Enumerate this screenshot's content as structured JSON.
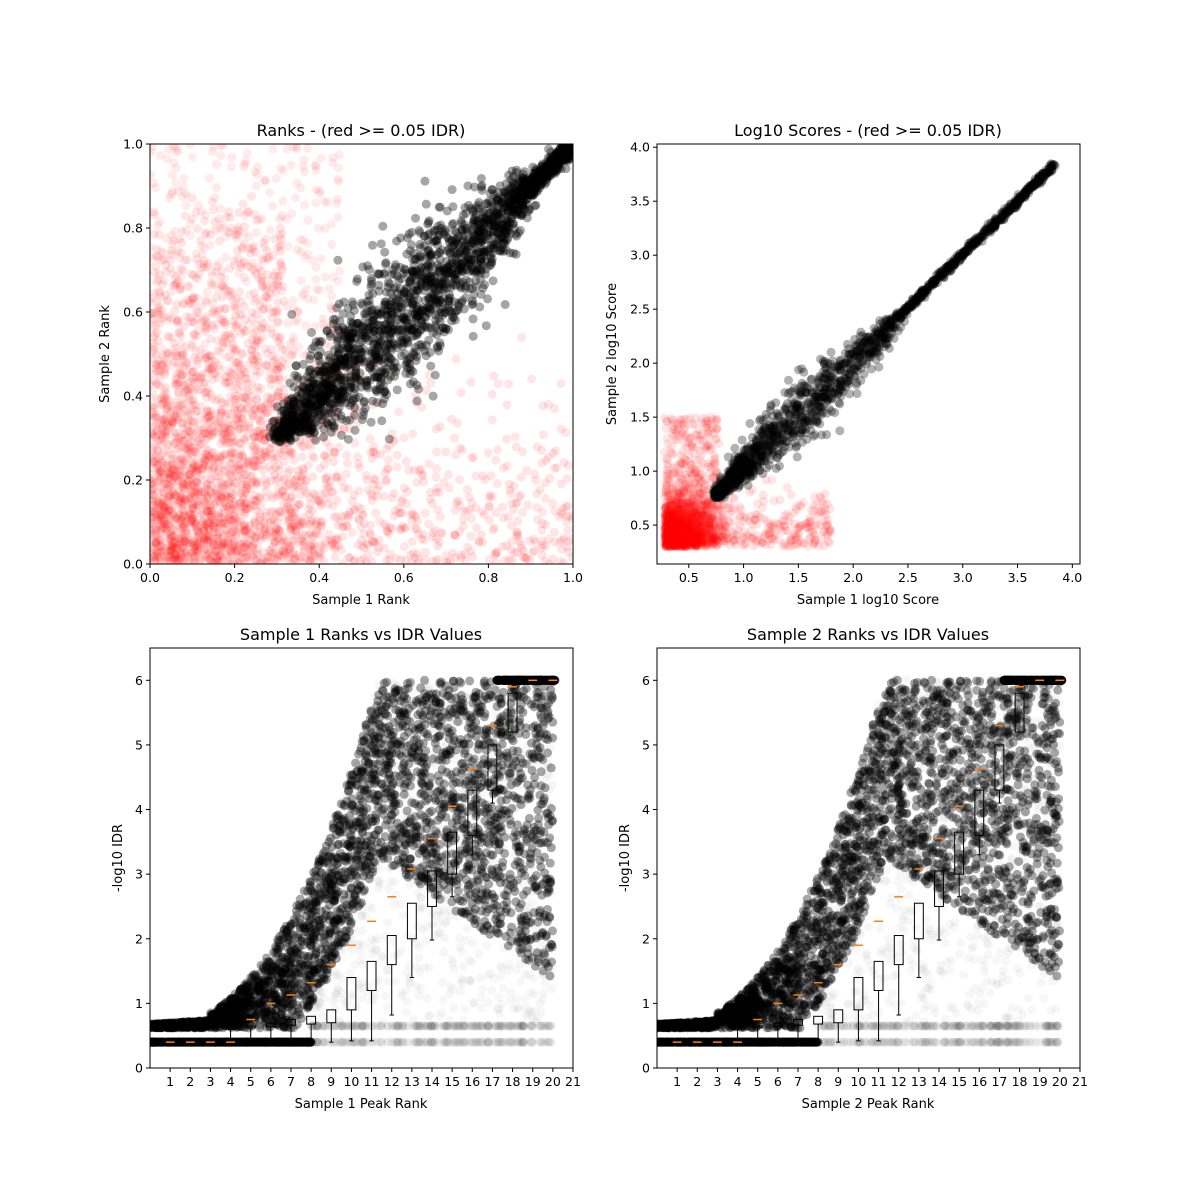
{
  "chart_data": [
    {
      "type": "scatter",
      "title": "Ranks - (red >= 0.05 IDR)",
      "xlabel": "Sample 1 Rank",
      "ylabel": "Sample 2 Rank",
      "xlim": [
        0.0,
        1.0
      ],
      "ylim": [
        0.0,
        1.0
      ],
      "xticks": [
        "0.0",
        "0.2",
        "0.4",
        "0.6",
        "0.8",
        "1.0"
      ],
      "yticks": [
        "0.0",
        "0.2",
        "0.4",
        "0.6",
        "0.8",
        "1.0"
      ],
      "grid": false,
      "series": [
        {
          "color": "#ff0000",
          "marker_alpha": 0.1,
          "x": [
            0.05,
            0.1,
            0.15,
            0.2,
            0.25,
            0.3,
            0.35,
            0.4,
            0.45,
            0.5,
            0.55,
            0.6,
            0.65,
            0.7,
            0.75,
            0.8,
            0.85,
            0.9,
            0.95,
            0.02,
            0.08,
            0.12,
            0.18,
            0.22,
            0.05,
            0.1,
            0.15,
            0.2,
            0.25,
            0.05,
            0.1,
            0.15,
            0.2,
            0.25,
            0.3,
            0.05,
            0.1,
            0.15,
            0.2,
            0.05,
            0.1,
            0.15,
            0.2,
            0.25
          ],
          "y": [
            0.1,
            0.2,
            0.15,
            0.25,
            0.1,
            0.2,
            0.1,
            0.15,
            0.2,
            0.1,
            0.12,
            0.08,
            0.1,
            0.15,
            0.05,
            0.1,
            0.2,
            0.05,
            0.1,
            0.95,
            0.9,
            0.85,
            0.8,
            0.75,
            0.7,
            0.65,
            0.6,
            0.55,
            0.45,
            0.4,
            0.35,
            0.3,
            0.25,
            0.3,
            0.25,
            0.5,
            0.45,
            0.4,
            0.35,
            0.05,
            0.02,
            0.08,
            0.03,
            0.06
          ]
        },
        {
          "color": "#000000",
          "marker_alpha": 0.1,
          "x": [
            0.3,
            0.35,
            0.4,
            0.45,
            0.5,
            0.55,
            0.6,
            0.65,
            0.7,
            0.75,
            0.8,
            0.85,
            0.9,
            0.95,
            1.0,
            0.32,
            0.4,
            0.5,
            0.6,
            0.7,
            0.8,
            0.9
          ],
          "y": [
            0.32,
            0.4,
            0.48,
            0.52,
            0.58,
            0.62,
            0.66,
            0.7,
            0.74,
            0.78,
            0.82,
            0.86,
            0.9,
            0.95,
            1.0,
            0.42,
            0.55,
            0.66,
            0.76,
            0.82,
            0.88,
            0.94
          ]
        }
      ]
    },
    {
      "type": "scatter",
      "title": "Log10 Scores - (red >= 0.05 IDR)",
      "xlabel": "Sample 1 log10 Score",
      "ylabel": "Sample 2 log10 Score",
      "xlim": [
        0.21,
        4.07
      ],
      "ylim": [
        0.14,
        4.03
      ],
      "xticks": [
        "0.5",
        "1.0",
        "1.5",
        "2.0",
        "2.5",
        "3.0",
        "3.5",
        "4.0"
      ],
      "yticks": [
        "0.5",
        "1.0",
        "1.5",
        "2.0",
        "2.5",
        "3.0",
        "3.5",
        "4.0"
      ],
      "grid": false,
      "series": [
        {
          "color": "#ff0000",
          "marker_alpha": 0.1,
          "x": [
            0.3,
            0.4,
            0.5,
            0.6,
            0.7,
            0.8,
            0.9,
            1.0,
            1.1,
            1.2,
            1.3,
            1.4,
            0.35,
            0.45,
            0.55,
            0.65,
            0.75,
            0.5,
            0.6,
            0.4,
            0.3,
            1.5,
            1.6,
            1.8
          ],
          "y": [
            0.3,
            0.5,
            0.7,
            0.9,
            1.1,
            1.2,
            0.5,
            0.6,
            0.7,
            0.5,
            0.8,
            0.6,
            1.5,
            1.8,
            2.0,
            2.1,
            1.3,
            0.35,
            0.4,
            0.9,
            1.0,
            0.5,
            0.6,
            0.8
          ]
        },
        {
          "color": "#000000",
          "marker_alpha": 0.1,
          "x": [
            0.75,
            0.9,
            1.0,
            1.2,
            1.4,
            1.6,
            1.8,
            2.0,
            2.2,
            2.4,
            2.6,
            2.8,
            3.0,
            3.2,
            3.4,
            3.6,
            3.75,
            3.85,
            1.0,
            1.5,
            2.0
          ],
          "y": [
            0.8,
            1.0,
            1.2,
            1.35,
            1.55,
            1.7,
            1.9,
            2.05,
            2.25,
            2.45,
            2.65,
            2.85,
            3.05,
            3.25,
            3.45,
            3.6,
            3.75,
            3.85,
            0.9,
            1.2,
            1.6
          ]
        }
      ]
    },
    {
      "type": "boxplot",
      "title": "Sample 1 Ranks vs IDR Values",
      "xlabel": "Sample 1 Peak Rank",
      "ylabel": "-log10 IDR",
      "xlim": [
        0,
        21
      ],
      "ylim": [
        0,
        6.5
      ],
      "xticks": [
        "1",
        "2",
        "3",
        "4",
        "5",
        "6",
        "7",
        "8",
        "9",
        "10",
        "11",
        "12",
        "13",
        "14",
        "15",
        "16",
        "17",
        "18",
        "19",
        "20",
        "21"
      ],
      "yticks": [
        "0",
        "1",
        "2",
        "3",
        "4",
        "5",
        "6"
      ],
      "medians": [
        0.4,
        0.4,
        0.4,
        0.4,
        0.75,
        1.0,
        1.13,
        1.32,
        1.6,
        1.9,
        2.27,
        2.65,
        3.08,
        3.55,
        4.05,
        4.63,
        5.3,
        5.9,
        6.0,
        6.0
      ],
      "box_lower": [
        0.4,
        0.4,
        0.4,
        0.6,
        0.62,
        0.64,
        0.66,
        0.68,
        0.7,
        0.9,
        1.2,
        1.6,
        2.0,
        2.5,
        3.0,
        3.6,
        4.3,
        5.2,
        6.0,
        6.0
      ],
      "box_upper": [
        0.4,
        0.4,
        0.4,
        0.62,
        0.65,
        0.7,
        0.75,
        0.8,
        0.9,
        1.4,
        1.65,
        2.05,
        2.55,
        3.05,
        3.65,
        4.3,
        5.0,
        5.8,
        6.0,
        6.0
      ],
      "whisker_low": [
        0.4,
        0.4,
        0.4,
        0.4,
        0.4,
        0.4,
        0.4,
        0.4,
        0.4,
        0.42,
        0.42,
        0.82,
        1.4,
        1.98,
        2.65,
        3.3,
        4.1,
        5.3,
        6.0,
        6.0
      ],
      "whisker_high": [
        0.4,
        0.4,
        0.4,
        0.62,
        0.65,
        0.7,
        0.75,
        0.8,
        0.9,
        1.4,
        1.65,
        2.05,
        2.55,
        3.05,
        3.65,
        4.3,
        5.0,
        5.8,
        6.0,
        6.0
      ],
      "grid": false
    },
    {
      "type": "boxplot",
      "title": "Sample 2 Ranks vs IDR Values",
      "xlabel": "Sample 2 Peak Rank",
      "ylabel": "-log10 IDR",
      "xlim": [
        0,
        21
      ],
      "ylim": [
        0,
        6.5
      ],
      "xticks": [
        "1",
        "2",
        "3",
        "4",
        "5",
        "6",
        "7",
        "8",
        "9",
        "10",
        "11",
        "12",
        "13",
        "14",
        "15",
        "16",
        "17",
        "18",
        "19",
        "20",
        "21"
      ],
      "yticks": [
        "0",
        "1",
        "2",
        "3",
        "4",
        "5",
        "6"
      ],
      "medians": [
        0.4,
        0.4,
        0.4,
        0.4,
        0.75,
        1.0,
        1.13,
        1.32,
        1.6,
        1.9,
        2.27,
        2.65,
        3.08,
        3.55,
        4.05,
        4.63,
        5.3,
        5.9,
        6.0,
        6.0
      ],
      "box_lower": [
        0.4,
        0.4,
        0.4,
        0.6,
        0.62,
        0.64,
        0.66,
        0.68,
        0.7,
        0.9,
        1.2,
        1.6,
        2.0,
        2.5,
        3.0,
        3.6,
        4.3,
        5.2,
        6.0,
        6.0
      ],
      "box_upper": [
        0.4,
        0.4,
        0.4,
        0.62,
        0.65,
        0.7,
        0.75,
        0.8,
        0.9,
        1.4,
        1.65,
        2.05,
        2.55,
        3.05,
        3.65,
        4.3,
        5.0,
        5.8,
        6.0,
        6.0
      ],
      "whisker_low": [
        0.4,
        0.4,
        0.4,
        0.4,
        0.4,
        0.4,
        0.4,
        0.4,
        0.4,
        0.42,
        0.42,
        0.82,
        1.4,
        1.98,
        2.65,
        3.3,
        4.1,
        5.3,
        6.0,
        6.0
      ],
      "whisker_high": [
        0.4,
        0.4,
        0.4,
        0.62,
        0.65,
        0.7,
        0.75,
        0.8,
        0.9,
        1.4,
        1.65,
        2.05,
        2.55,
        3.05,
        3.65,
        4.3,
        5.0,
        5.8,
        6.0,
        6.0
      ],
      "grid": false
    }
  ]
}
